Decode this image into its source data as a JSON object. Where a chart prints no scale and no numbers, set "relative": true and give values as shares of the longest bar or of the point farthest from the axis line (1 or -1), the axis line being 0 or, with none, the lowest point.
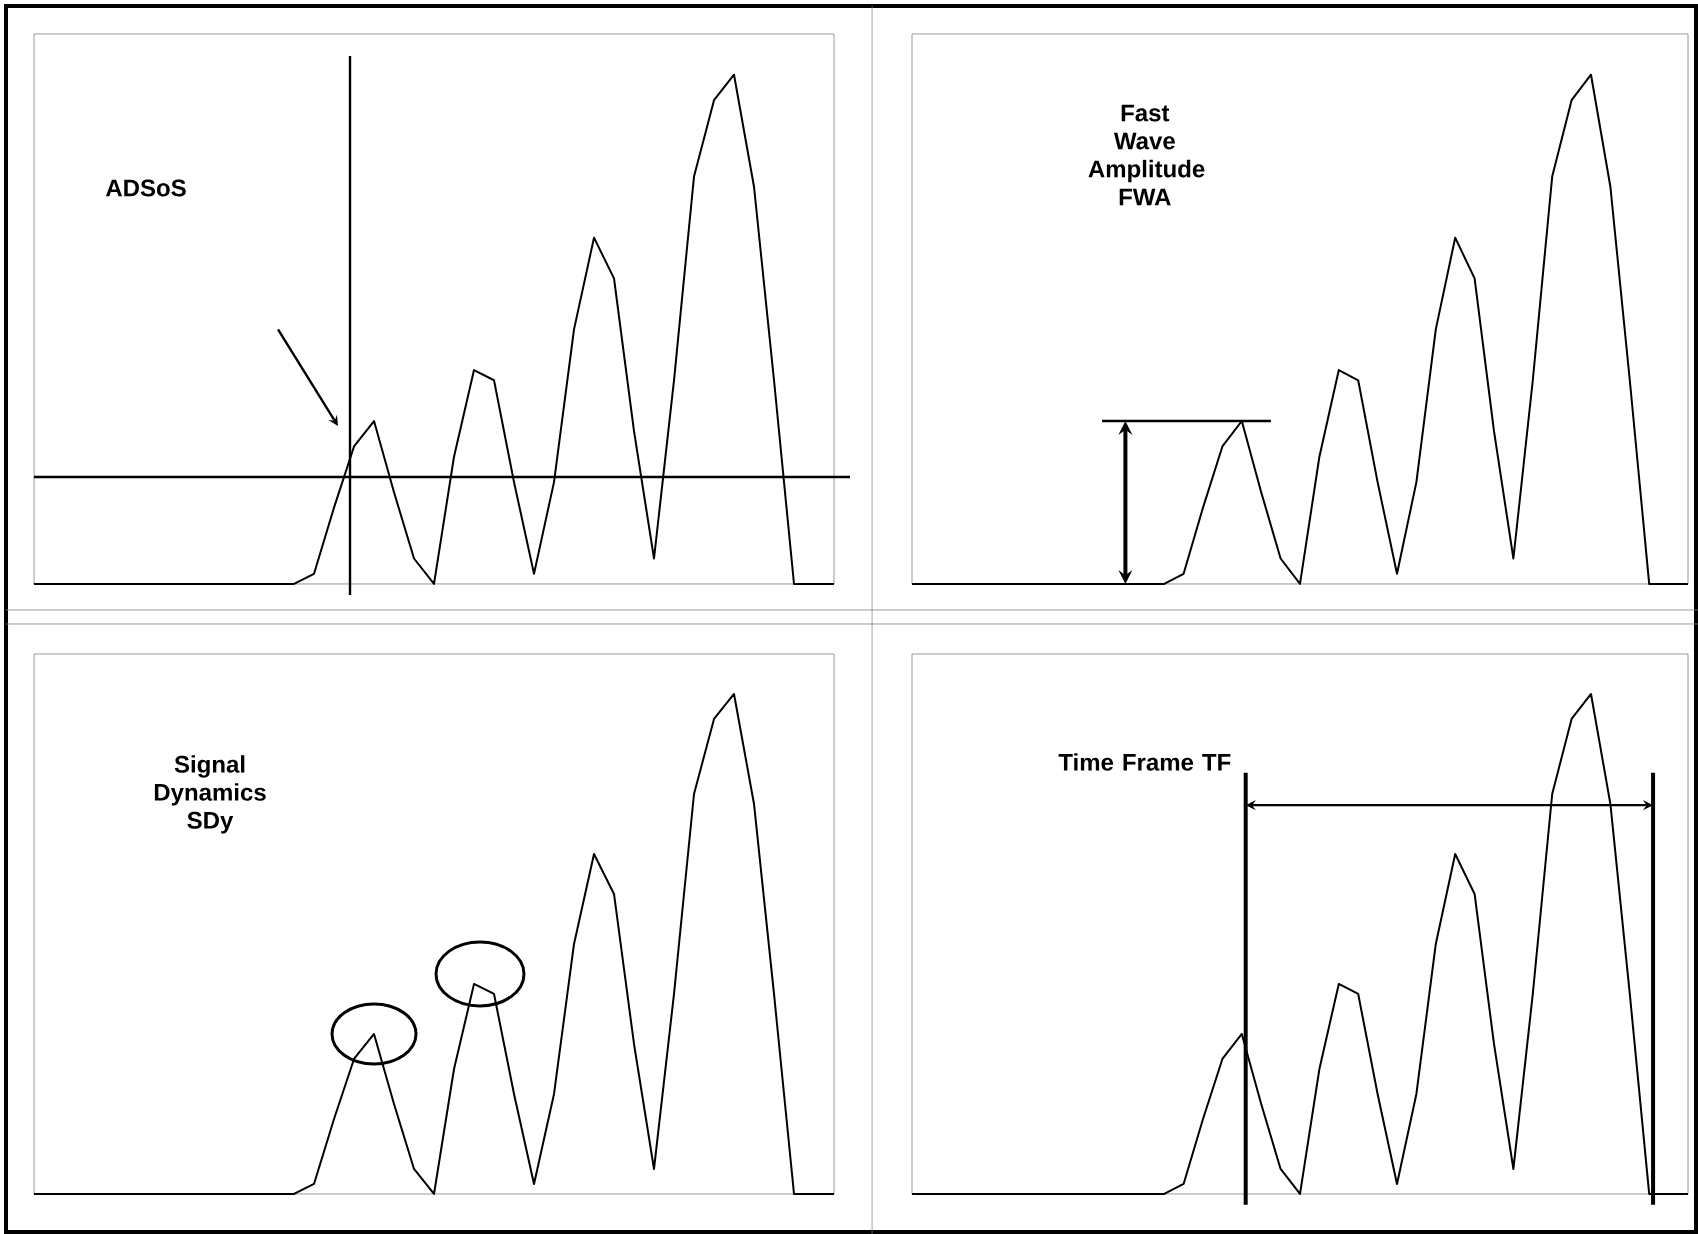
{
  "chart_data": [
    {
      "type": "line",
      "relative": true,
      "categories": [
        null,
        null,
        null,
        null,
        null,
        null,
        null,
        null,
        null,
        null,
        null,
        null,
        null,
        null,
        null,
        null,
        null,
        null,
        null,
        null,
        null,
        null,
        null,
        null,
        null,
        null,
        null,
        null,
        null,
        null,
        null,
        null,
        null,
        null,
        null,
        null,
        null,
        null,
        null,
        null,
        null
      ],
      "series": [
        {
          "color": "#000000",
          "values": [
            0,
            0,
            0,
            0,
            0,
            0,
            0,
            0,
            0,
            0,
            0,
            0,
            0,
            0,
            0.02,
            0.15,
            0.27,
            0.32,
            0.18,
            0.05,
            0,
            0.25,
            0.42,
            0.4,
            0.2,
            0.02,
            0.2,
            0.5,
            0.68,
            0.6,
            0.3,
            0.05,
            0.4,
            0.8,
            0.95,
            1,
            0.78,
            0.4,
            0,
            0,
            0
          ]
        }
      ],
      "annotations": [
        "ADSoS"
      ],
      "ref_lines": [
        {
          "axis": "y",
          "value": 0.21
        }
      ]
    },
    {
      "type": "line",
      "relative": true,
      "categories": [
        null,
        null,
        null,
        null,
        null,
        null,
        null,
        null,
        null,
        null,
        null,
        null,
        null,
        null,
        null,
        null,
        null,
        null,
        null,
        null,
        null,
        null,
        null,
        null,
        null,
        null,
        null,
        null,
        null,
        null,
        null,
        null,
        null,
        null,
        null,
        null,
        null,
        null,
        null,
        null,
        null
      ],
      "series": [
        {
          "color": "#000000",
          "values": [
            0,
            0,
            0,
            0,
            0,
            0,
            0,
            0,
            0,
            0,
            0,
            0,
            0,
            0,
            0.02,
            0.15,
            0.27,
            0.32,
            0.18,
            0.05,
            0,
            0.25,
            0.42,
            0.4,
            0.2,
            0.02,
            0.2,
            0.5,
            0.68,
            0.6,
            0.3,
            0.05,
            0.4,
            0.8,
            0.95,
            1,
            0.78,
            0.4,
            0,
            0,
            0
          ]
        }
      ],
      "annotations": [
        "Fast Wave Amplitude FWA"
      ],
      "ref_lines": [
        {
          "axis": "y",
          "value": 0.32
        }
      ]
    },
    {
      "type": "line",
      "relative": true,
      "categories": [
        null,
        null,
        null,
        null,
        null,
        null,
        null,
        null,
        null,
        null,
        null,
        null,
        null,
        null,
        null,
        null,
        null,
        null,
        null,
        null,
        null,
        null,
        null,
        null,
        null,
        null,
        null,
        null,
        null,
        null,
        null,
        null,
        null,
        null,
        null,
        null,
        null,
        null,
        null,
        null,
        null
      ],
      "series": [
        {
          "color": "#000000",
          "values": [
            0,
            0,
            0,
            0,
            0,
            0,
            0,
            0,
            0,
            0,
            0,
            0,
            0,
            0,
            0.02,
            0.15,
            0.27,
            0.32,
            0.18,
            0.05,
            0,
            0.25,
            0.42,
            0.4,
            0.2,
            0.02,
            0.2,
            0.5,
            0.68,
            0.6,
            0.3,
            0.05,
            0.4,
            0.8,
            0.95,
            1,
            0.78,
            0.4,
            0,
            0,
            0
          ]
        }
      ],
      "annotations": [
        "Signal Dynamics SDy"
      ]
    },
    {
      "type": "line",
      "relative": true,
      "categories": [
        null,
        null,
        null,
        null,
        null,
        null,
        null,
        null,
        null,
        null,
        null,
        null,
        null,
        null,
        null,
        null,
        null,
        null,
        null,
        null,
        null,
        null,
        null,
        null,
        null,
        null,
        null,
        null,
        null,
        null,
        null,
        null,
        null,
        null,
        null,
        null,
        null,
        null,
        null,
        null,
        null
      ],
      "series": [
        {
          "color": "#000000",
          "values": [
            0,
            0,
            0,
            0,
            0,
            0,
            0,
            0,
            0,
            0,
            0,
            0,
            0,
            0,
            0.02,
            0.15,
            0.27,
            0.32,
            0.18,
            0.05,
            0,
            0.25,
            0.42,
            0.4,
            0.2,
            0.02,
            0.2,
            0.5,
            0.68,
            0.6,
            0.3,
            0.05,
            0.4,
            0.8,
            0.95,
            1,
            0.78,
            0.4,
            0,
            0,
            0
          ]
        }
      ],
      "annotations": [
        "Time Frame TF"
      ]
    }
  ]
}
